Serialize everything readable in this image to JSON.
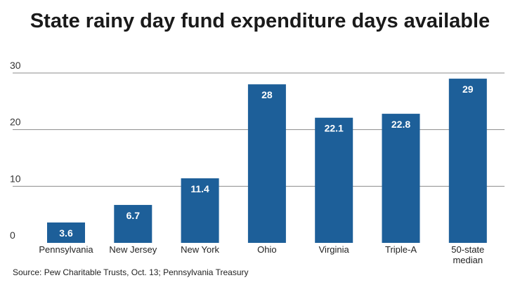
{
  "chart_data": {
    "type": "bar",
    "title": "State rainy day fund expenditure days available",
    "categories": [
      "Pennsylvania",
      "New Jersey",
      "New York",
      "Ohio",
      "Virginia",
      "Triple-A",
      "50-state median"
    ],
    "category_lines": [
      [
        "Pennsylvania"
      ],
      [
        "New Jersey"
      ],
      [
        "New York"
      ],
      [
        "Ohio"
      ],
      [
        "Virginia"
      ],
      [
        "Triple-A"
      ],
      [
        "50-state",
        "median"
      ]
    ],
    "values": [
      3.6,
      6.7,
      11.4,
      28,
      22.1,
      22.8,
      29
    ],
    "value_labels": [
      "3.6",
      "6.7",
      "11.4",
      "28",
      "22.1",
      "22.8",
      "29"
    ],
    "ylim": [
      0,
      30
    ],
    "yticks": [
      0,
      10,
      20,
      30
    ],
    "xlabel": "",
    "ylabel": "",
    "grid": true,
    "bar_color": "#1d5f99",
    "grid_color": "#8c8c8c",
    "label_color": "#ffffff"
  },
  "source": "Source: Pew Charitable Trusts, Oct. 13; Pennsylvania Treasury"
}
